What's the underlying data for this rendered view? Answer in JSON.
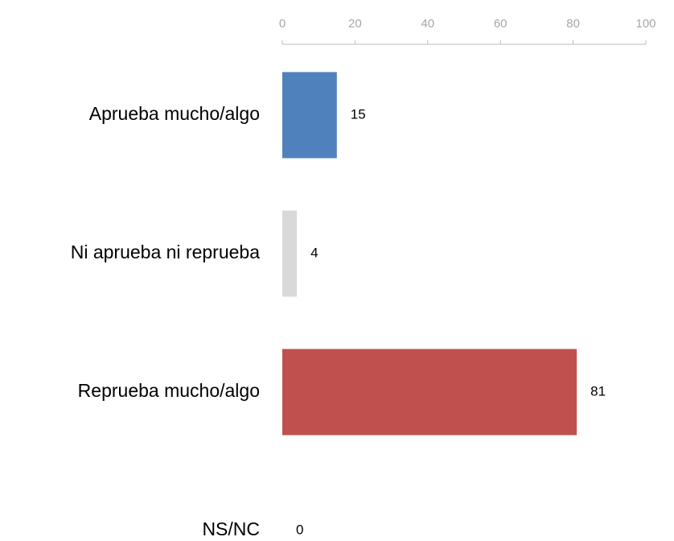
{
  "chart_data": {
    "type": "hbar",
    "categories": [
      "Aprueba mucho/algo",
      "Ni aprueba ni reprueba",
      "Reprueba mucho/algo",
      "NS/NC"
    ],
    "values": [
      15,
      4,
      81,
      0
    ],
    "colors": [
      "#4f81bd",
      "#d9d9d9",
      "#c0504d",
      "#a5a5a5"
    ],
    "xlim": [
      0,
      100
    ],
    "xticks": [
      0,
      20,
      40,
      60,
      80,
      100
    ]
  }
}
